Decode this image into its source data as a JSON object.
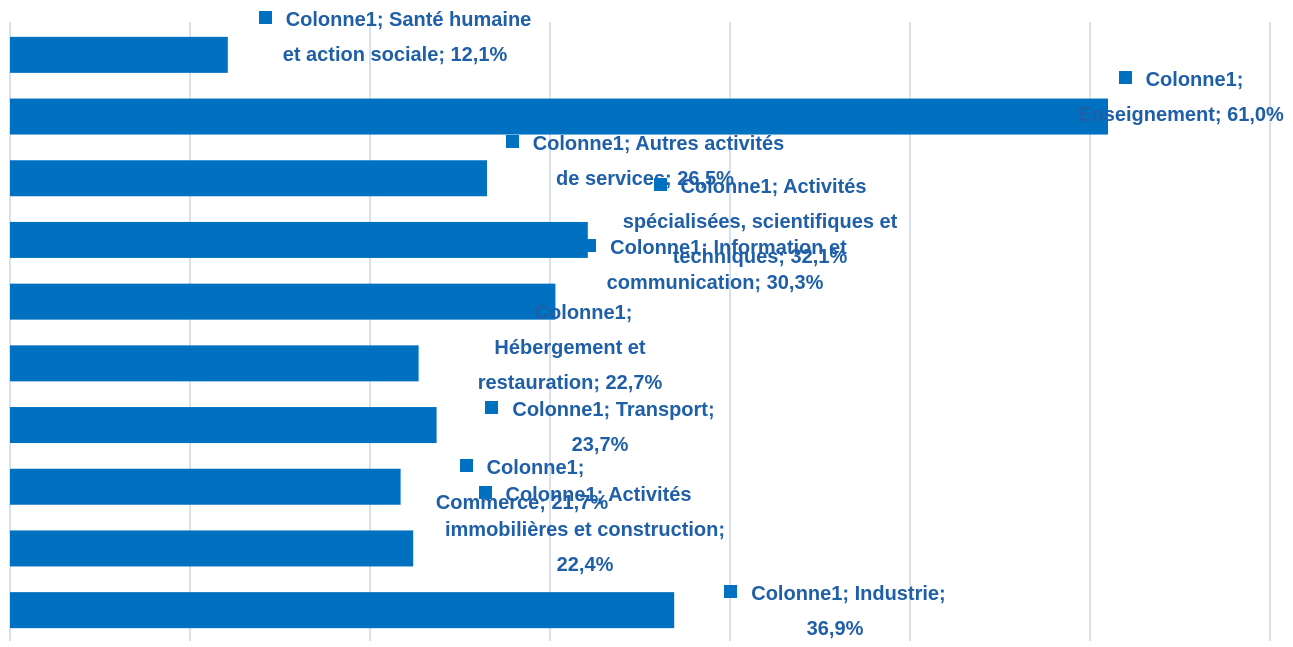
{
  "chart_data": {
    "type": "bar",
    "orientation": "horizontal",
    "values": [
      12.1,
      61.0,
      26.5,
      32.1,
      30.3,
      22.7,
      23.7,
      21.7,
      22.4,
      36.9
    ],
    "value_labels": [
      "Colonne1; Santé humaine et action sociale; 12,1%",
      "Colonne1; Enseignement; 61,0%",
      "Colonne1; Autres activités de services; 26,5%",
      "Colonne1; Activités spécialisées, scientifiques et techniques; 32,1%",
      "Colonne1; Information et communication; 30,3%",
      "Colonne1; Hébergement et restauration; 22,7%",
      "Colonne1; Transport; 23,7%",
      "Colonne1; Commerce; 21,7%",
      "Colonne1; Activités immobilières et construction; 22,4%",
      "Colonne1; Industrie; 36,9%"
    ],
    "color": "#0070c0",
    "xlim": [
      0,
      70
    ],
    "xticks": [
      0,
      10,
      20,
      30,
      40,
      50,
      60,
      70
    ],
    "grid": true
  }
}
